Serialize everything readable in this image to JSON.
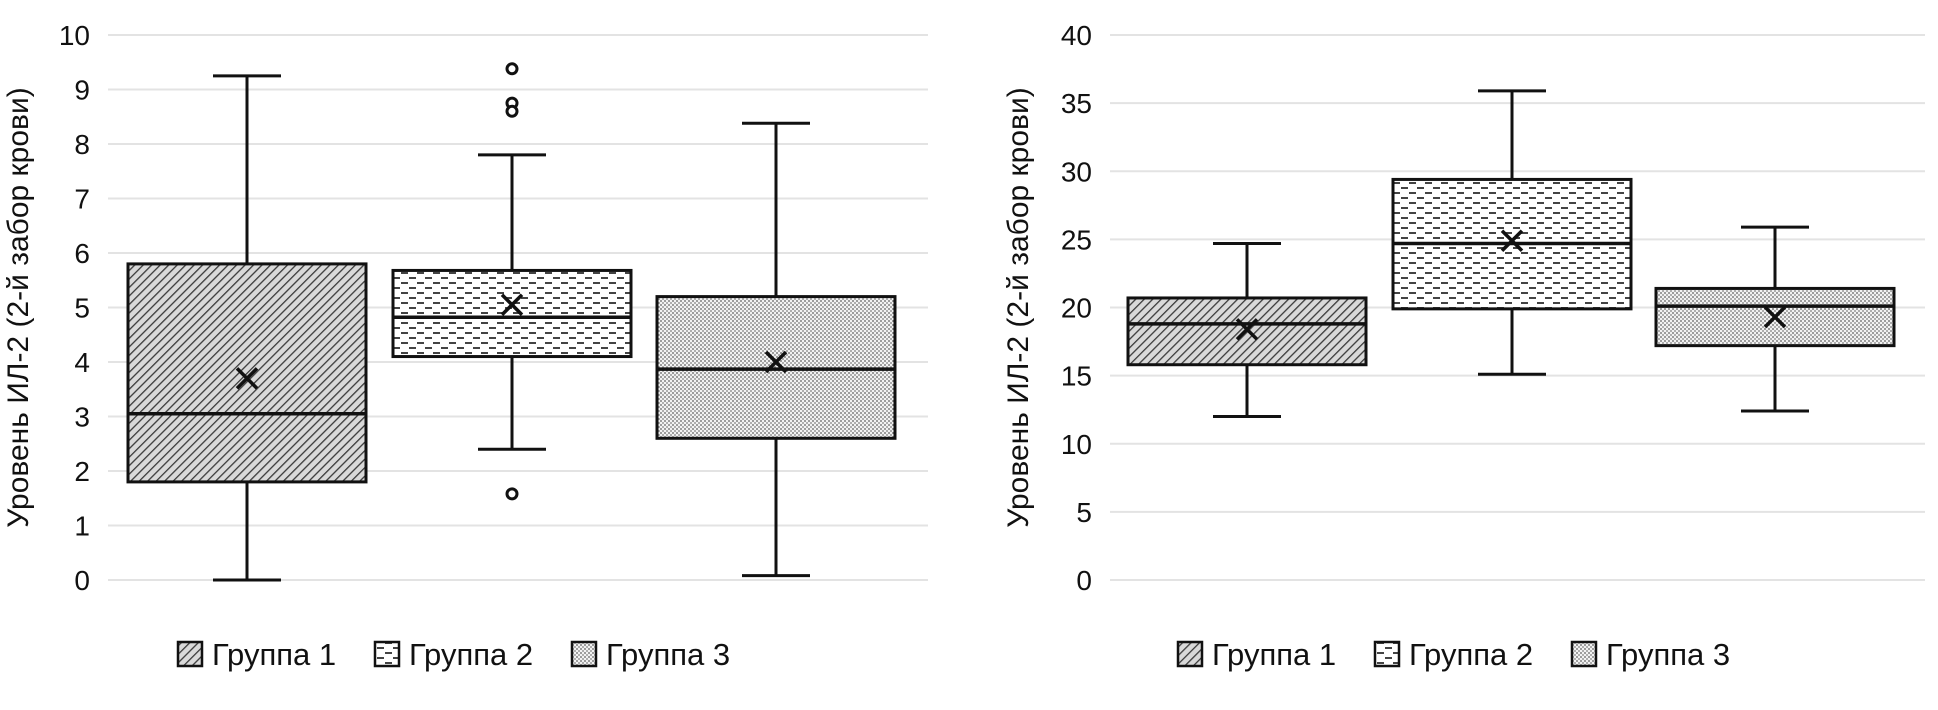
{
  "chart_data": [
    {
      "type": "box",
      "ylabel": "Уровень ИЛ-2 (2-й забор крови)",
      "ylim": [
        0,
        10
      ],
      "yticks": [
        0,
        1,
        2,
        3,
        4,
        5,
        6,
        7,
        8,
        9,
        10
      ],
      "grid": true,
      "legend_position": "bottom",
      "series": [
        {
          "name": "Группа 1",
          "pattern": "diagonal-hatch",
          "min": 0,
          "q1": 1.8,
          "median": 3.05,
          "q3": 5.8,
          "max": 9.25,
          "mean": 3.7,
          "outliers": []
        },
        {
          "name": "Группа 2",
          "pattern": "dashed-lines",
          "min": 2.4,
          "q1": 4.1,
          "median": 4.82,
          "q3": 5.68,
          "max": 7.8,
          "mean": 5.05,
          "outliers": [
            9.38,
            8.75,
            8.6,
            1.58
          ]
        },
        {
          "name": "Группа 3",
          "pattern": "dotted",
          "min": 0.08,
          "q1": 2.6,
          "median": 3.87,
          "q3": 5.2,
          "max": 8.38,
          "mean": 4.0,
          "outliers": []
        }
      ]
    },
    {
      "type": "box",
      "ylabel": "Уровень ИЛ-2 (2-й забор крови)",
      "ylim": [
        0,
        40
      ],
      "yticks": [
        0,
        5,
        10,
        15,
        20,
        25,
        30,
        35,
        40
      ],
      "grid": true,
      "legend_position": "bottom",
      "series": [
        {
          "name": "Группа 1",
          "pattern": "diagonal-hatch",
          "min": 12,
          "q1": 15.8,
          "median": 18.8,
          "q3": 20.7,
          "max": 24.7,
          "mean": 18.4,
          "outliers": []
        },
        {
          "name": "Группа 2",
          "pattern": "dashed-lines",
          "min": 15.1,
          "q1": 19.9,
          "median": 24.7,
          "q3": 29.4,
          "max": 35.9,
          "mean": 24.9,
          "outliers": []
        },
        {
          "name": "Группа 3",
          "pattern": "dotted",
          "min": 12.4,
          "q1": 17.2,
          "median": 20.1,
          "q3": 21.4,
          "max": 25.9,
          "mean": 19.3,
          "outliers": []
        }
      ]
    }
  ]
}
